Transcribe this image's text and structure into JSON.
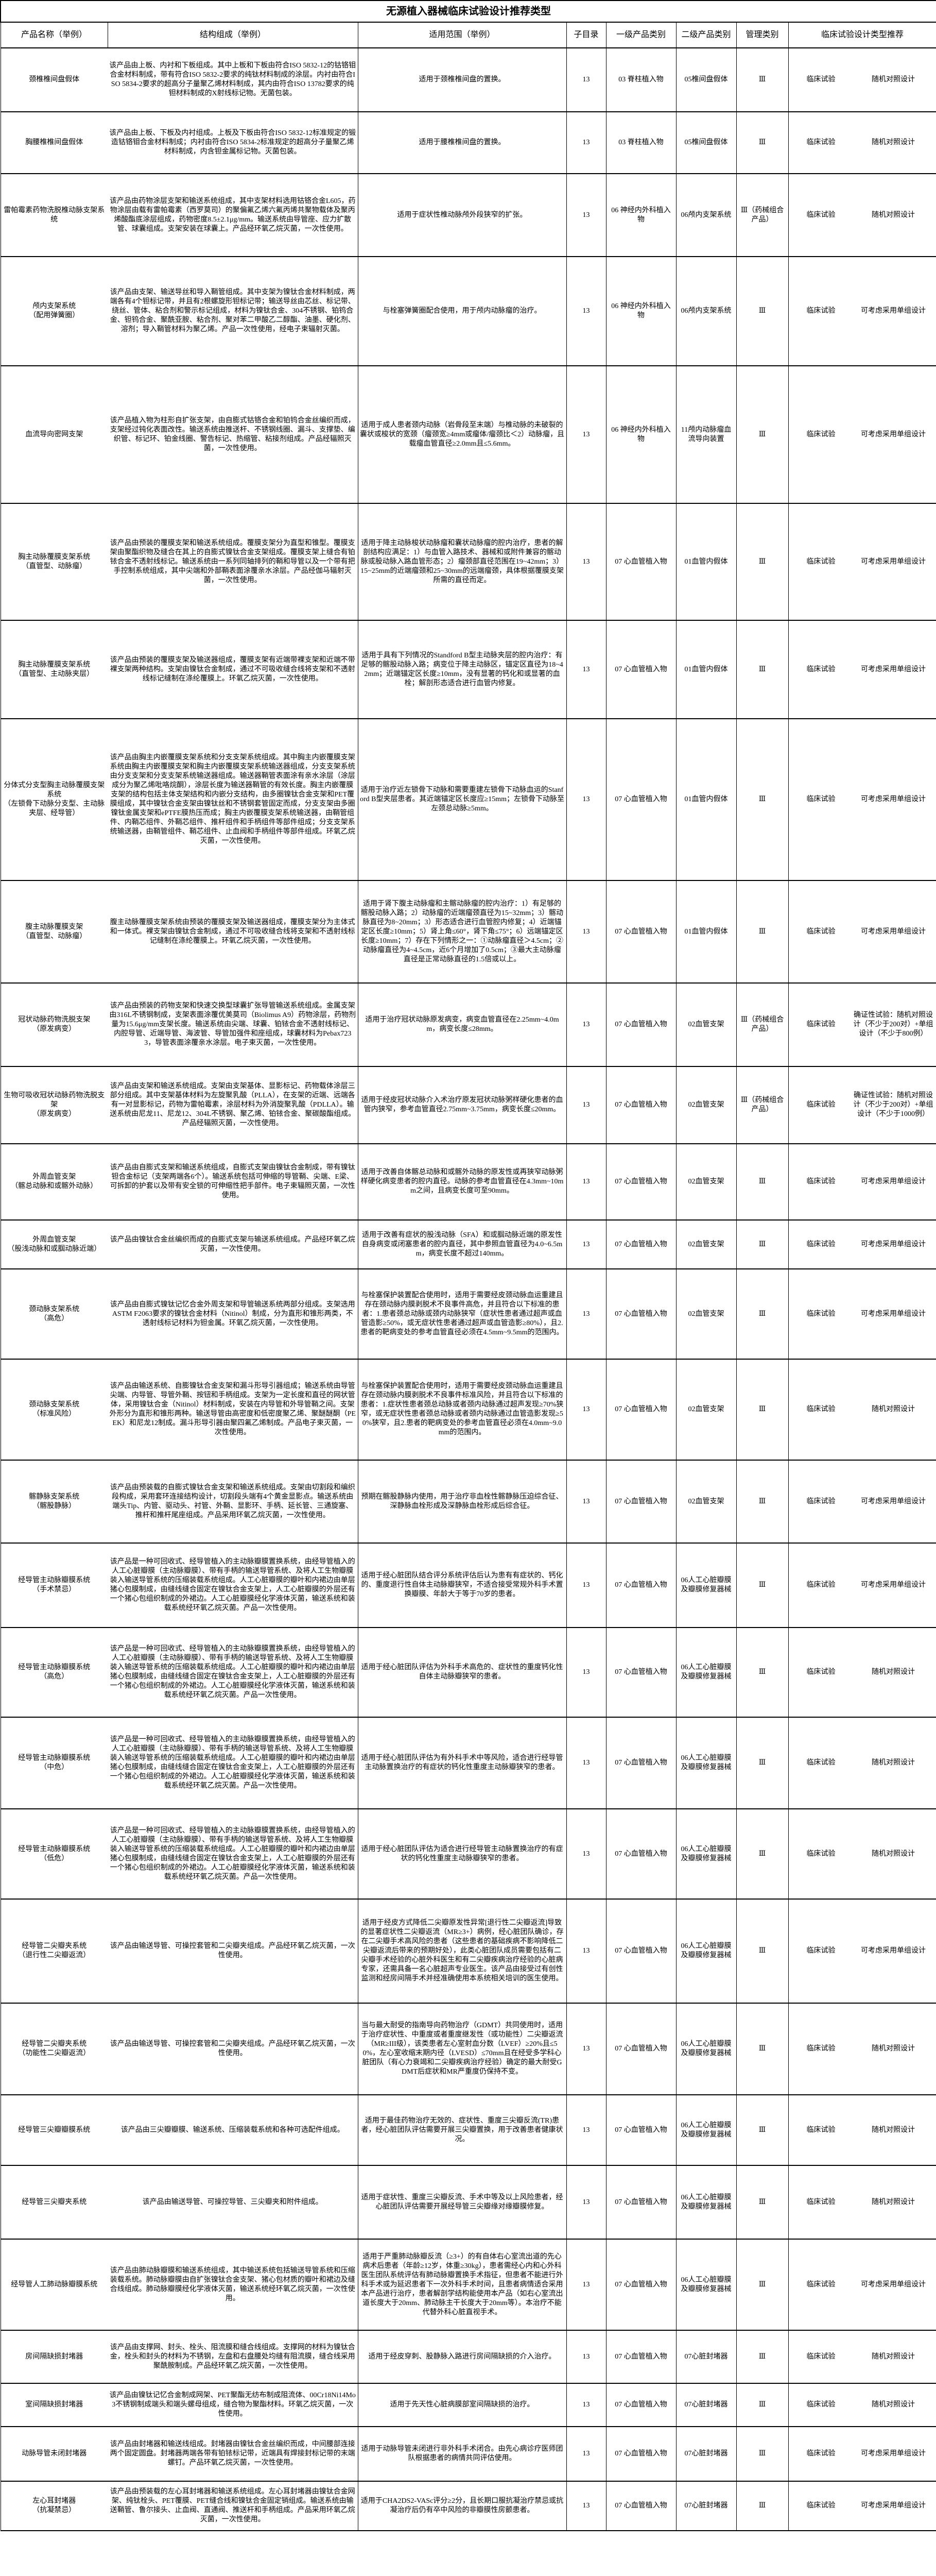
{
  "title": "无源植入器械临床试验设计推荐类型",
  "columns": [
    "产品名称（举例）",
    "结构组成（举例）",
    "适用范围（举例）",
    "子目录",
    "一级产品类别",
    "二级产品类别",
    "管理类别",
    "临床试验设计类型推荐"
  ],
  "rows": [
    {
      "name": "颈椎椎间盘假体",
      "structure": "该产品由上板、内衬和下板组成。其中上板和下板由符合ISO 5832-12的钴铬钼合金材料制成，带有符合ISO 5832-2要求的纯钛材料制成的涂层。内衬由符合ISO 5834-2要求的超高分子量聚乙烯材料制成，其内由符合ISO 13782要求的纯钽材料制成的X射线标记物。无菌包装。",
      "scope": "适用于颈椎椎间盘的置换。",
      "sub": "13",
      "cat1": "03 脊柱植入物",
      "cat2": "05椎间盘假体",
      "mgmt": "Ⅲ",
      "trial": "临床试验",
      "design": "随机对照设计"
    },
    {
      "name": "胸腰椎椎间盘假体",
      "structure": "该产品由上板、下板及内衬组成。上板及下板由符合ISO 5832-12标准规定的锻造钴铬钼合金材料制成；内衬由符合ISO 5834-2标准规定的超高分子量聚乙烯材料制成，内含钽金属标记物。灭菌包装。",
      "scope": "适用于腰椎椎间盘的置换。",
      "sub": "13",
      "cat1": "03 脊柱植入物",
      "cat2": "05椎间盘假体",
      "mgmt": "Ⅲ",
      "trial": "临床试验",
      "design": "随机对照设计"
    },
    {
      "name": "雷帕霉素药物洗脱椎动脉支架系统",
      "structure": "该产品由药物涂层支架和输送系统组成，其中支架材料选用钴铬合金L605，药物涂层由载有雷帕霉素（西罗莫司）的聚偏氟乙烯六氟丙烯共聚物载体及聚丙烯酸酯底涂层组成，药物密度8.5±2.1μg/mm。输送系统由导管座、应力扩散管、球囊组成。支架安装在球囊上。产品经环氧乙烷灭菌，一次性使用。",
      "scope": "适用于症状性椎动脉颅外段狭窄的扩张。",
      "sub": "13",
      "cat1": "06 神经内外科植入物",
      "cat2": "06颅内支架系统",
      "mgmt": "Ⅲ（药械组合产品）",
      "trial": "临床试验",
      "design": "随机对照设计"
    },
    {
      "name": "颅内支架系统\n（配用弹簧圈）",
      "structure": "该产品由支架、输送导丝和导入鞘管组成。其中支架为镍钛合金材料制成，两端各有4个钽标记带，并且有2根螺旋形钽标记带；输送导丝由芯丝、标记带、绕丝、管体、粘合剂和警示标记组成，材料为镍钛合金、304不锈钢、铂钨合金、钽钨合金、聚酰亚胺、粘合剂、聚对苯二甲酸乙二醇酯、油墨、硬化剂、溶剂；导入鞘管材料为聚乙烯。产品一次性使用，经电子束辐射灭菌。",
      "scope": "与栓塞弹簧圈配合使用，用于颅内动脉瘤的治疗。",
      "sub": "13",
      "cat1": "06 神经内外科植入物",
      "cat2": "06颅内支架系统",
      "mgmt": "Ⅲ",
      "trial": "临床试验",
      "design": "可考虑采用单组设计"
    },
    {
      "name": "血流导向密网支架",
      "structure": "该产品植入物为柱形自扩张支架，由自膨式钴铬合金和铂钨合金丝编织而成，支架经过钝化表面改性。输送系统由推送杆、不锈钢线圈、漏斗、支撑垫、编织管、标记环、铂金线圈、警告标记、热缩管、粘接剂组成。产品经辐照灭菌，一次性使用。",
      "scope": "适用于成人患者颈内动脉（岩骨段至末端）与椎动脉的未破裂的囊状或梭状的宽颈（瘤颈宽≥4mm或瘤体/瘤颈比＜2）动脉瘤，且载瘤血管直径≥2.0mm且≤5.6mm。",
      "sub": "13",
      "cat1": "06 神经内外科植入物",
      "cat2": "11颅内动脉瘤血流导向装置",
      "mgmt": "Ⅲ",
      "trial": "临床试验",
      "design": "可考虑采用单组设计"
    },
    {
      "name": "胸主动脉覆膜支架系统\n（直管型、动脉瘤）",
      "structure": "该产品由预装的覆膜支架和输送系统组成。覆膜支架分为直型和锥型。覆膜支架由聚酯织物及缝合在其上的自膨式镍钛合金支架组成。覆膜支架上缝合有铂铱合金不透射线标记。输送系统由一系列同轴排列的鞘和导管以及一个带有把手控制系统组成，其中尖端和外部鞘表面涂覆亲水涂层。产品经伽马辐射灭菌，一次性使用。",
      "scope": "适用于降主动脉梭状动脉瘤和囊状动脉瘤的腔内治疗，患者的解剖结构应满足：1）与血管入路技术、器械和或附件兼容的髂动脉或股动脉入路血管形态；2）瘤颈部直径范围在19~42mm；3）15~25mm的近端瘤颈和25~30mm的远端瘤颈，具体根据覆膜支架所需的直径而定。",
      "sub": "13",
      "cat1": "07 心血管植入物",
      "cat2": "01血管内假体",
      "mgmt": "Ⅲ",
      "trial": "临床试验",
      "design": "可考虑采用单组设计"
    },
    {
      "name": "胸主动脉覆膜支架系统\n（直管型、主动脉夹层）",
      "structure": "该产品由预装的覆膜支架及输送器组成，覆膜支架有近端带裸支架和近端不带裸支架两种结构。支架由镍钛合金制成，通过不可吸收缝合线将支架和不透射线标记缝制在涤纶覆膜上。环氧乙烷灭菌，一次性使用。",
      "scope": "适用于具有下列情况的Standford B型主动脉夹层的腔内治疗：有足够的髂股动脉入路；病变位于降主动脉区，锚定区直径为18~42mm；近端锚定区长度≥10mm，没有显著的钙化和或显著的血栓；解剖形态适合进行血管内修复。",
      "sub": "13",
      "cat1": "07 心血管植入物",
      "cat2": "01血管内假体",
      "mgmt": "Ⅲ",
      "trial": "临床试验",
      "design": "可考虑采用单组设计"
    },
    {
      "name": "分体式分支型胸主动脉覆膜支架系统\n（左锁骨下动脉分支型、主动脉夹层、经导管）",
      "structure": "该产品由胸主内嵌覆膜支架系统和分支支架系统组成。其中胸主内嵌覆膜支架系统由胸主内嵌覆膜支架和胸主内嵌覆膜支架系统输送器组成，分支支架系统由分支支架和分支支架系统输送器组成。输送器鞘管表面涂有亲水涂层（涂层成分为聚乙烯吡咯烷酮），涂层长度为输送器鞘管的有效长度。胸主内嵌覆膜支架的结构包括主体支架结构和内嵌分支结构，由多圈镍钛合金支架和PET覆膜组成，其中镍钛合金支架由镍钛丝和不锈钢套管固定而成，分支支架由多圈镍钛金属支架和ePTFE膜热压而成；胸主内嵌覆膜支架系统输送器，由鞘管组件、内鞘芯组件、外鞘芯组件、推杆组件和手柄组件等部件组成；分支支架系统输送器，由鞘管组件、鞘芯组件、止血阀和手柄组件等部件组成。环氧乙烷灭菌，一次性使用。",
      "scope": "适用于治疗近左锁骨下动脉和需要重建左锁骨下动脉血运的Stanford B型夹层患者。其近端锚定区长度应≥15mm；左锁骨下动脉至左颈总动脉≥5mm。",
      "sub": "13",
      "cat1": "07 心血管植入物",
      "cat2": "01血管内假体",
      "mgmt": "Ⅲ",
      "trial": "临床试验",
      "design": "可考虑采用单组设计"
    },
    {
      "name": "腹主动脉覆膜支架\n（直管型、动脉瘤）",
      "structure": "腹主动脉覆膜支架系统由预装的覆膜支架及输送器组成，覆膜支架分为主体式和一体式。裸支架由镍钛合金制成，通过不可吸收缝合线将支架和不透射线标记缝制在涤纶覆膜上。环氧乙烷灭菌，一次性使用。",
      "scope": "适用于肾下腹主动脉瘤和主髂动脉瘤的腔内治疗：1）有足够的髂股动脉入路；2）动脉瘤的近端瘤颈直径为15~32mm；3）髂动脉直径为8~20mm；3）形态适合进行血管腔内修复；4）近端锚定区长度≥10mm；5）肾上角≤60°，肾下角≤75°；6）远端锚定区长度≥10mm；7）存在下列情形之一：①动脉瘤直径＞4.5cm；②动脉瘤直径为4~4.5cm，近6个月增加了0.5cm；③最大主动脉瘤直径是正常动脉直径的1.5倍或以上。",
      "sub": "13",
      "cat1": "07 心血管植入物",
      "cat2": "01血管内假体",
      "mgmt": "Ⅲ",
      "trial": "临床试验",
      "design": "可考虑采用单组设计"
    },
    {
      "name": "冠状动脉药物洗脱支架\n（原发病变）",
      "structure": "该产品由预装的药物支架和快速交换型球囊扩张导管输送系统组成。金属支架由316L不锈钢制成，支架表面涂覆优美莫司（Biolimus A9）药物涂层，药物剂量为15.6μg/mm支架长度。输送系统由尖端、球囊、铂铱合金不透射线标记、内腔导管、近端导管、海波管、导管加强件和座组成，球囊材料为Pebax7233，导管表面涂覆亲水涂层。电子束灭菌，一次性使用。",
      "scope": "适用于治疗冠状动脉原发病变，病变血管直径在2.25mm~4.0mm，病变长度≤28mm。",
      "sub": "13",
      "cat1": "07 心血管植入物",
      "cat2": "02血管支架",
      "mgmt": "Ⅲ（药械组合产品）",
      "trial": "临床试验",
      "design": "确证性试验：随机对照设计（不少于200对）+单组设计（不少于800例）"
    },
    {
      "name": "生物可吸收冠状动脉药物洗脱支架\n（原发病变）",
      "structure": "该产品由支架和输送系统组成。支架由支架基体、显影标记、药物载体涂层三部分组成。其中支架基体材料为左旋聚乳酸（PLLA），在支架的近端、远端各有一对显影标记，药物为雷帕霉素，涂层材料为外消旋聚乳酸（PDLLA）。输送系统由尼龙11、尼龙12、304L不锈钢、聚乙烯、铂铱合金、聚碳酸酯组成。产品经辐照灭菌，一次性使用。",
      "scope": "适用于经皮冠状动脉介入术治疗原发冠状动脉粥样硬化患者的血管内狭窄，参考血管直径2.75mm~3.75mm，病变长度≤20mm。",
      "sub": "13",
      "cat1": "07 心血管植入物",
      "cat2": "02血管支架",
      "mgmt": "Ⅲ（药械组合产品）",
      "trial": "临床试验",
      "design": "确证性试验：随机对照设计（不少于200对）+单组设计（不少于1000例）"
    },
    {
      "name": "外周血管支架\n（髂总动脉和或髂外动脉）",
      "structure": "该产品由自膨式支架和输送系统组成，自膨式支架由镍钛合金制成，带有镍钛钽合金标记（支架两端各6个）。输送系统包括可伸缩的导管鞘、尖端、E梁、可拆卸的护套以及带有安全锁的可伸缩性把手部件。电子束辐照灭菌，一次性使用。",
      "scope": "适用于改善自体髂总动脉和或髂外动脉的原发性或再狭窄动脉粥样硬化病变患者的腔内直径。动脉的参考血管直径在4.3mm~10mm之间，且病变长度可至90mm。",
      "sub": "13",
      "cat1": "07 心血管植入物",
      "cat2": "02血管支架",
      "mgmt": "Ⅲ",
      "trial": "临床试验",
      "design": "可考虑采用单组设计"
    },
    {
      "name": "外周血管支架\n（股浅动脉和或腘动脉近端）",
      "structure": "该产品由镍钛合金丝编织而成的自膨式支架与输送系统组成。产品经环氧乙烷灭菌，一次性使用。",
      "scope": "适用于改善有症状的股浅动脉（SFA）和或腘动脉近端的原发性自身病变或闭塞患者的腔内直径，其中参照血管直径为4.0~6.5mm，病变长度不超过140mm。",
      "sub": "13",
      "cat1": "07 心血管植入物",
      "cat2": "02血管支架",
      "mgmt": "Ⅲ",
      "trial": "临床试验",
      "design": "可考虑采用单组设计"
    },
    {
      "name": "颈动脉支架系统\n（高危）",
      "structure": "该产品由自膨式镍钛记忆合金外周支架和导管输送系统两部分组成。支架选用ASTM F2063要求的镍钛合金材料（Nitinol）制成，分为直形和锥形两类，不透射线标记材料为钽金属。环氧乙烷灭菌，一次性使用。",
      "scope": "与栓塞保护装置配合使用时，适用于需要经皮颈动脉血运重建且存在颈动脉内膜剥脱术不良事件高危，并且符合以下标准的患者：1.患者颈总动脉或颈内动脉狭窄（症状性患者通过超声或血管造影≥50%，或无症状性患者通过超声或血管造影≥80%），且2.患者的靶病变处的参考血管直径必须在4.5mm~9.5mm的范围内。",
      "sub": "13",
      "cat1": "07 心血管植入物",
      "cat2": "02血管支架",
      "mgmt": "Ⅲ",
      "trial": "临床试验",
      "design": "可考虑采用单组设计"
    },
    {
      "name": "颈动脉支架系统\n（标准风险）",
      "structure": "该产品由输送系统、自膨镍钛合金支架和漏斗形导引器组成；输送系统由导管尖端、内导管、导管外鞘、按钮和手柄组成。支架为一定长度和直径的网状管体，采用镍钛合金（Nitinol）材料制成，安装在内导管和外导管鞘之间。支架外形分为直形和锥形两种。输送导管由高密度和低密度聚乙烯、聚醚醚酮（PEEK）和尼龙12制成。漏斗形导引器由聚四氟乙烯制成。产品电子束灭菌，一次性使用。",
      "scope": "与栓塞保护装置配合使用时，适用于需要经皮颈动脉血运重建且存在颈动脉内膜剥脱术不良事件标准风险，并且符合以下标准的患者：1.症状性患者颈总动脉或者颈内动脉通过超声发现≥70%狭窄，或无症状性患者颈总动脉或者颈内动脉通过血管造影发现≥50%狭窄，且2.患者的靶病变处的参考血管直径必须在4.0mm~9.0mm的范围内。",
      "sub": "13",
      "cat1": "07 心血管植入物",
      "cat2": "02血管支架",
      "mgmt": "Ⅲ",
      "trial": "临床试验",
      "design": "随机对照设计"
    },
    {
      "name": "髂静脉支架系统\n（髂股静脉）",
      "structure": "该产品由预装载的自膨式镍钛合金支架和输送系统组成。支架由切割段和编织段构成，采用套环连接结构设计，切割段头端有4个黄金显影点。输送系统由端头Tip、内管、驱动头、衬管、外鞘、显影环、手柄、延长管、三通旋塞、推杆和推杆尾座组成。产品采用环氧乙烷灭菌，一次性使用。",
      "scope": "预期在髂股静脉内使用，用于治疗非血栓性髂静脉压迫综合征、深静脉血栓形成及深静脉血栓形成后综合征。",
      "sub": "13",
      "cat1": "07 心血管植入物",
      "cat2": "02血管支架",
      "mgmt": "Ⅲ",
      "trial": "临床试验",
      "design": "可考虑采用单组设计"
    },
    {
      "name": "经导管主动脉瓣膜系统\n（手术禁忌）",
      "structure": "该产品是一种可回收式、经导管植入的主动脉瓣膜置换系统，由经导管植入的人工心脏瓣膜（主动脉瓣膜）、带有手柄的输送导管系统、及将人工生物瓣膜装入输送导管系统的压缩装载系统组成。人工心脏瓣膜的瓣叶和内裙边由单层猪心包膜制成，由缝线缝合固定在镍钛合金支架上，人工心脏瓣膜的外层还有一个猪心包组织制成的外裙边。人工心脏瓣膜经化学液体灭菌，输送系统和装载系统经环氧乙烷灭菌。产品一次性使用。",
      "scope": "适用于经心脏团队结合评分系统评估后认为患有有症状的、钙化的、重度退行性自体主动脉瓣狭窄，不适合接受常规外科手术置换瓣膜、年龄大于等于70岁的患者。",
      "sub": "13",
      "cat1": "07 心血管植入物",
      "cat2": "06人工心脏瓣膜及瓣膜修复器械",
      "mgmt": "Ⅲ",
      "trial": "临床试验",
      "design": "可考虑采用单组设计"
    },
    {
      "name": "经导管主动脉瓣膜系统\n（高危）",
      "structure": "该产品是一种可回收式、经导管植入的主动脉瓣膜置换系统，由经导管植入的人工心脏瓣膜（主动脉瓣膜）、带有手柄的输送导管系统、及将人工生物瓣膜装入输送导管系统的压缩装载系统组成。人工心脏瓣膜的瓣叶和内裙边由单层猪心包膜制成，由缝线缝合固定在镍钛合金支架上，人工心脏瓣膜的外层还有一个猪心包组织制成的外裙边。人工心脏瓣膜经化学液体灭菌，输送系统和装载系统经环氧乙烷灭菌。产品一次性使用。",
      "scope": "适用于经心脏团队评估为外科手术高危的、症状性的重度钙化性自体主动脉瓣狭窄的患者。",
      "sub": "13",
      "cat1": "07 心血管植入物",
      "cat2": "06人工心脏瓣膜及瓣膜修复器械",
      "mgmt": "Ⅲ",
      "trial": "临床试验",
      "design": "随机对照设计"
    },
    {
      "name": "经导管主动脉瓣膜系统\n（中危）",
      "structure": "该产品是一种可回收式、经导管植入的主动脉瓣膜置换系统，由经导管植入的人工心脏瓣膜（主动脉瓣膜）、带有手柄的输送导管系统、及将人工生物瓣膜装入输送导管系统的压缩装载系统组成。人工心脏瓣膜的瓣叶和内裙边由单层猪心包膜制成，由缝线缝合固定在镍钛合金支架上，人工心脏瓣膜的外层还有一个猪心包组织制成的外裙边。人工心脏瓣膜经化学液体灭菌，输送系统和装载系统经环氧乙烷灭菌。产品一次性使用。",
      "scope": "适用于经心脏团队评估为有外科手术中等风险，适合进行经导管主动脉置换治疗的有症状的钙化性重度主动脉瓣狭窄的患者。",
      "sub": "13",
      "cat1": "07 心血管植入物",
      "cat2": "06人工心脏瓣膜及瓣膜修复器械",
      "mgmt": "Ⅲ",
      "trial": "临床试验",
      "design": "随机对照设计"
    },
    {
      "name": "经导管主动脉瓣膜系统\n（低危）",
      "structure": "该产品是一种可回收式、经导管植入的主动脉瓣膜置换系统，由经导管植入的人工心脏瓣膜（主动脉瓣膜）、带有手柄的输送导管系统、及将人工生物瓣膜装入输送导管系统的压缩装载系统组成。人工心脏瓣膜的瓣叶和内裙边由单层猪心包膜制成，由缝线缝合固定在镍钛合金支架上，人工心脏瓣膜的外层还有一个猪心包组织制成的外裙边。人工心脏瓣膜经化学液体灭菌，输送系统和装载系统经环氧乙烷灭菌。产品一次性使用。",
      "scope": "适用于经心脏团队评估为适合进行经导管主动脉置换治疗的有症状的钙化性重度主动脉瓣狭窄的患者。",
      "sub": "13",
      "cat1": "07 心血管植入物",
      "cat2": "06人工心脏瓣膜及瓣膜修复器械",
      "mgmt": "Ⅲ",
      "trial": "临床试验",
      "design": "随机对照设计"
    },
    {
      "name": "经导管二尖瓣夹系统\n（退行性二尖瓣返流）",
      "structure": "该产品由输送导管、可操控套管和二尖瓣夹组成。产品经环氧乙烷灭菌，一次性使用。",
      "scope": "适用于经皮方式降低二尖瓣原发性异常[退行性二尖瓣返流]导致的显著症状性二尖瓣返流（MR≥3+）病例，经心脏团队确诊，存在二尖瓣手术高风险的患者（这些患者的基础疾病不影响降低二尖瓣返流后带来的预期好处），此类心脏团队成员需要包括有二尖瓣手术经验的心脏外科医生和有二尖瓣疾病治疗经验的心脏病专家，还需具备一名心脏超声专业医生。该产品由接受过有创性监测和经房间隔手术并经准确使用本系统相关培训的医生使用。",
      "sub": "13",
      "cat1": "07 心血管植入物",
      "cat2": "06人工心脏瓣膜及瓣膜修复器械",
      "mgmt": "Ⅲ",
      "trial": "临床试验",
      "design": "可考虑采用单组设计"
    },
    {
      "name": "经导管二尖瓣夹系统\n（功能性二尖瓣返流）",
      "structure": "该产品由输送导管、可操控套管和二尖瓣夹组成。产品经环氧乙烷灭菌，一次性使用。",
      "scope": "当与最大耐受的指南导向药物治疗（GDMT）共同使用时，适用于治疗症状性、中重度或者重度继发性（或功能性）二尖瓣返流（MR≥III级），该类患者左心室射血分数（LVEF）≥20%且≤50%，左心室收缩末期内径（LVESD）≤70mm且在经受多学科心脏团队（有心力衰竭和二尖瓣疾病治疗经验）确定的最大耐受GDMT后症状和MR严重度仍保持不变。",
      "sub": "13",
      "cat1": "07 心血管植入物",
      "cat2": "06人工心脏瓣膜及瓣膜修复器械",
      "mgmt": "Ⅲ",
      "trial": "临床试验",
      "design": "随机对照设计"
    },
    {
      "name": "经导管三尖瓣瓣膜系统",
      "structure": "该产品由三尖瓣瓣膜、输送系统、压缩装载系统和各种可选配件组成。",
      "scope": "适用于最佳药物治疗无效的、症状性、重度三尖瓣反流(TR)患者，经心脏团队评估需要开展三尖瓣置换，用于改善患者健康状况。",
      "sub": "13",
      "cat1": "07 心血管植入物",
      "cat2": "06人工心脏瓣膜及瓣膜修复器械",
      "mgmt": "Ⅲ",
      "trial": "临床试验",
      "design": "随机对照设计"
    },
    {
      "name": "经导管三尖瓣夹系统",
      "structure": "该产品由输送导管、可操控导管、三尖瓣夹和附件组成。",
      "scope": "适用于症状性、重度三尖瓣反流、手术中等及以上风险患者，经心脏团队评估需要开展经导管三尖瓣缘对缘瓣膜修复。",
      "sub": "13",
      "cat1": "07 心血管植入物",
      "cat2": "06人工心脏瓣膜及瓣膜修复器械",
      "mgmt": "Ⅲ",
      "trial": "临床试验",
      "design": "随机对照设计"
    },
    {
      "name": "经导管人工肺动脉瓣膜系统",
      "structure": "该产品由肺动脉瓣膜和输送系统组成，其中输送系统包括输送导管系统和压缩装载系统。肺动脉瓣膜由自扩张镍钛合金支架、猪心包材质的瓣叶和裙边及缝合线组成。肺动脉瓣膜经化学液体灭菌，输送系统经环氧乙烷灭菌，一次性使用。",
      "scope": "适用于严重肺动脉瓣反流（≥3+）的有自体右心室流出道的先心病术后患者（年龄≥12岁，体重≥30kg），患者需经心内和心外科医生团队系统评估有肺动脉瓣置换手术指征，但患者不能进行外科手术或为延迟患者下一次外科手术时间，且患者病情适合采用本产品进行治疗，患者解剖学结构能使用本产品（如右心室流出道长度大于20mm、肺动脉主干长度大于20mm等）。本治疗不能代替外科心脏直视手术。",
      "sub": "13",
      "cat1": "07 心血管植入物",
      "cat2": "06人工心脏瓣膜及瓣膜修复器械",
      "mgmt": "Ⅲ",
      "trial": "临床试验",
      "design": "可考虑采用单组设计"
    },
    {
      "name": "房间隔缺损封堵器",
      "structure": "该产品由支撑网、封头、栓头、阻流膜和缝合线组成。支撑网的材料为镍钛合金，栓头和封头的材料为不锈钢，左盘和右盘腰处均缝有阻流膜，缝合线采用聚酰胺制成。产品经环氧乙烷灭菌，一次性使用。",
      "scope": "适用于经皮穿刺、股静脉入路进行房间隔缺损的介入治疗。",
      "sub": "13",
      "cat1": "07 心血管植入物",
      "cat2": "07心脏封堵器",
      "mgmt": "Ⅲ",
      "trial": "临床试验",
      "design": "随机对照设计"
    },
    {
      "name": "室间隔缺损封堵器",
      "structure": "该产品由镍钛记忆合金制成网架、PET聚酯无纺布制成阻流体、00Cr18Ni14Mo3不锈钢制成端头和端头螺母组成，缝合物为聚酯材料。环氧乙烷灭菌，一次性使用。",
      "scope": "适用于先天性心脏病膜部室间隔缺损的治疗。",
      "sub": "13",
      "cat1": "07 心血管植入物",
      "cat2": "07心脏封堵器",
      "mgmt": "Ⅲ",
      "trial": "临床试验",
      "design": "随机对照设计"
    },
    {
      "name": "动脉导管未闭封堵器",
      "structure": "该产品由封堵器和输送线组成。封堵器由镍钛合金丝编织而成，中间腰部连接两个固定圆盘。封堵器两端各带有铂铱标记带，近端具有焊接封标记带的末端螺钉。产品环氧乙烷灭菌，一次性使用。",
      "scope": "适用于动脉导管未闭进行非外科手术闭合。由先心病诊疗医师团队根据患者的病情共同评估使用。",
      "sub": "13",
      "cat1": "07 心血管植入物",
      "cat2": "07心脏封堵器",
      "mgmt": "Ⅲ",
      "trial": "临床试验",
      "design": "可考虑采用单组设计"
    },
    {
      "name": "左心耳封堵器\n（抗凝禁忌）",
      "structure": "该产品由预装载的左心耳封堵器和输送系统组成。左心耳封堵器由镍钛合金网架、纯钛栓头、PET覆膜、PET缝合线和镍钛合金固定销组成。输送系统由输送鞘管、鲁尔接头、止血阀、直通阀、推送杆和手柄组成。产品采用环氧乙烷灭菌，一次性使用。",
      "scope": "适用于CHA2DS2-VASc评分≥2分，且长期口服抗凝治疗禁忌或抗凝治疗后仍有卒中风险的非瓣膜性房颤患者。",
      "sub": "13",
      "cat1": "07 心血管植入物",
      "cat2": "07心脏封堵器",
      "mgmt": "Ⅲ",
      "trial": "临床试验",
      "design": "可考虑采用单组设计"
    }
  ]
}
